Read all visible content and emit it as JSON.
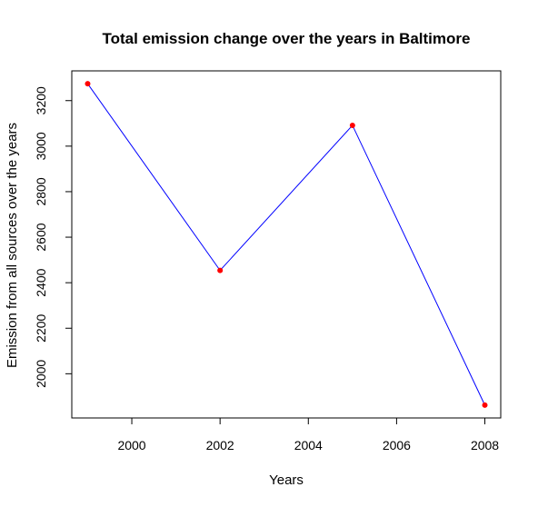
{
  "chart_data": {
    "type": "line",
    "title": "Total emission change over the years in Baltimore",
    "xlabel": "Years",
    "ylabel": "Emission from all sources over the years",
    "x": [
      1999,
      2002,
      2005,
      2008
    ],
    "series": [
      {
        "values": [
          3274.18,
          2453.92,
          3091.35,
          1862.28
        ]
      }
    ],
    "xlim": [
      1998.64,
      2008.36
    ],
    "ylim": [
      1805.8,
      3330.7
    ],
    "xticks": [
      2000,
      2002,
      2004,
      2006,
      2008
    ],
    "yticks": [
      2000,
      2200,
      2400,
      2600,
      2800,
      3000,
      3200
    ],
    "grid": false,
    "colors": {
      "line": "#0000ff",
      "points": "#ff0000",
      "axis": "#000000"
    }
  }
}
